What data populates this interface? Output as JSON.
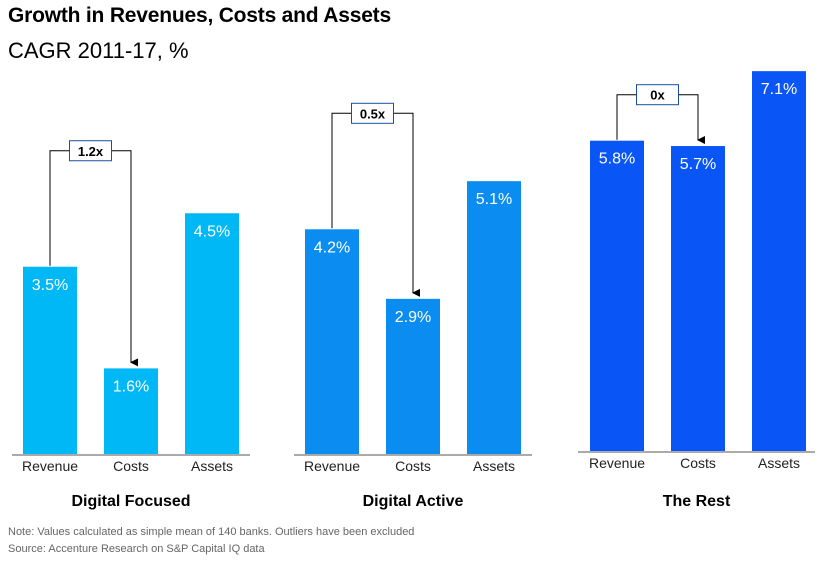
{
  "title": "Growth in Revenues, Costs and Assets",
  "subtitle": "CAGR 2011-17, %",
  "notes": {
    "note": "Note: Values calculated as simple mean of 140 banks. Outliers have been excluded",
    "source": "Source: Accenture Research on S&P Capital IQ data"
  },
  "colors": {
    "digital_focused": "#00b8f5",
    "digital_active": "#0a8cf0",
    "the_rest": "#0a55f5"
  },
  "chart_data": [
    {
      "type": "bar",
      "name": "Digital Focused",
      "categories": [
        "Revenue",
        "Costs",
        "Assets"
      ],
      "values": [
        3.5,
        1.6,
        4.5
      ],
      "labels": [
        "3.5%",
        "1.6%",
        "4.5%"
      ],
      "ratio_label": "1.2x",
      "ylim": [
        0,
        8
      ],
      "grid": false
    },
    {
      "type": "bar",
      "name": "Digital Active",
      "categories": [
        "Revenue",
        "Costs",
        "Assets"
      ],
      "values": [
        4.2,
        2.9,
        5.1
      ],
      "labels": [
        "4.2%",
        "2.9%",
        "5.1%"
      ],
      "ratio_label": "0.5x",
      "ylim": [
        0,
        8
      ],
      "grid": false
    },
    {
      "type": "bar",
      "name": "The Rest",
      "categories": [
        "Revenue",
        "Costs",
        "Assets"
      ],
      "values": [
        5.8,
        5.7,
        7.1
      ],
      "labels": [
        "5.8%",
        "5.7%",
        "7.1%"
      ],
      "ratio_label": "0x",
      "ylim": [
        0,
        8
      ],
      "grid": false
    }
  ]
}
